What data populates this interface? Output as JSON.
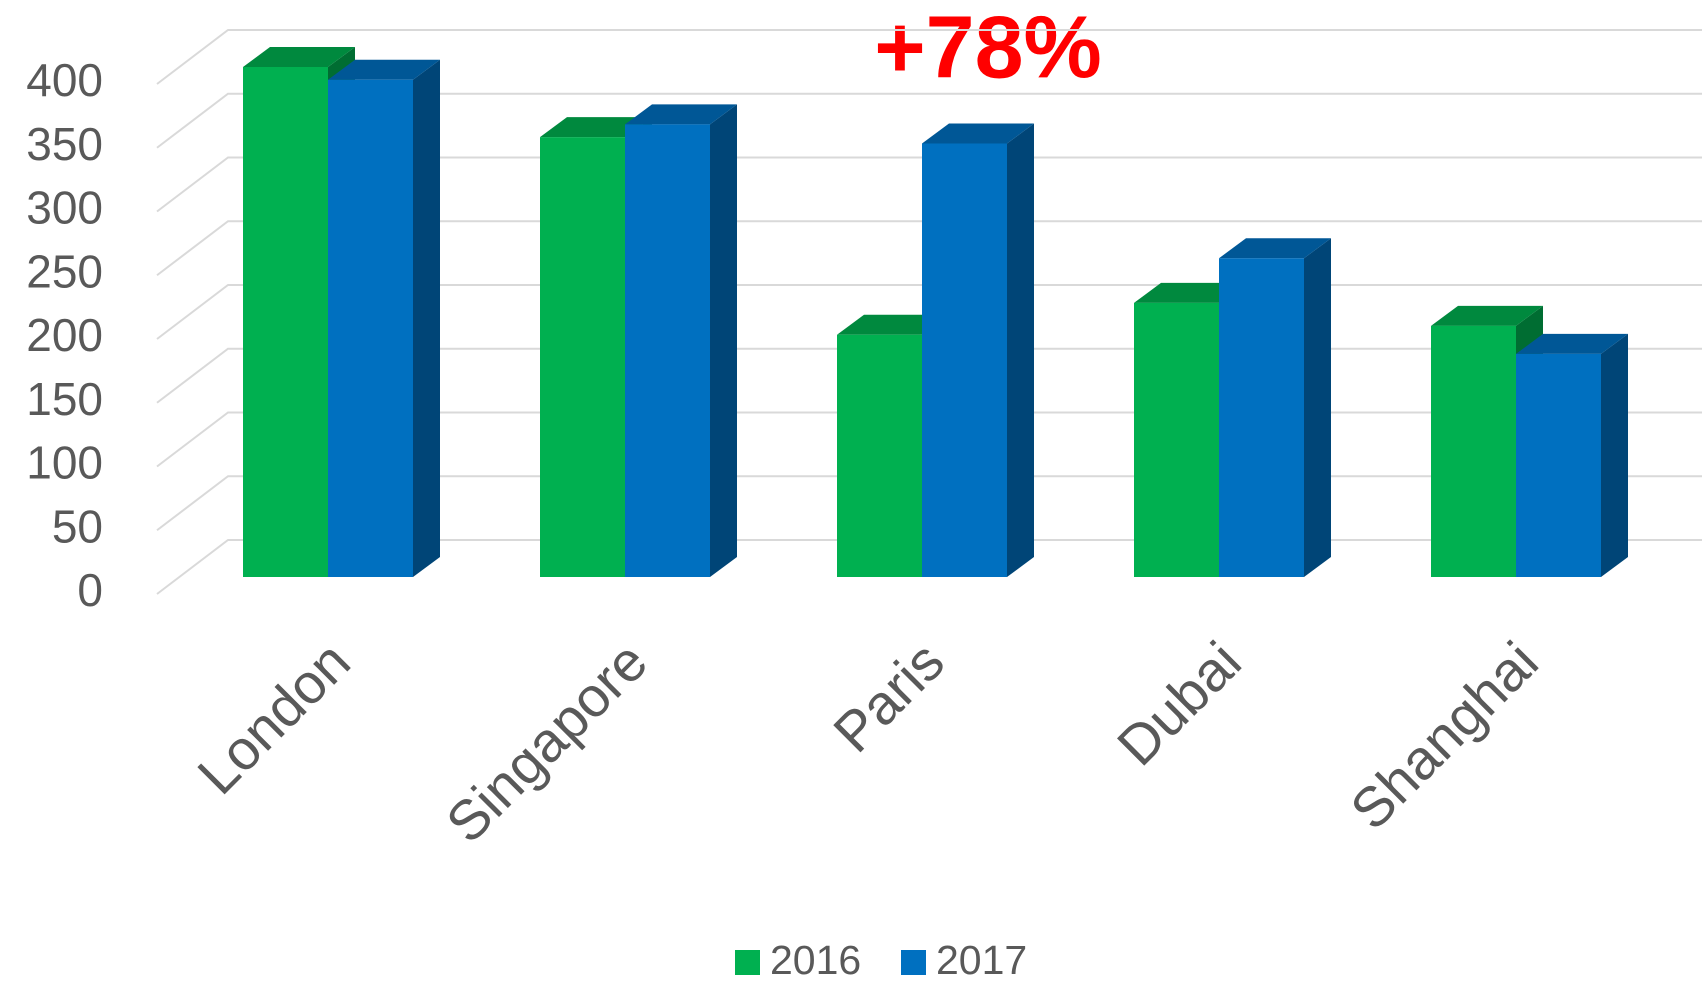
{
  "chart_data": {
    "type": "bar3d",
    "annotation": "+78%",
    "categories": [
      "London",
      "Singapore",
      "Paris",
      "Dubai",
      "Shanghai"
    ],
    "series": [
      {
        "name": "2016",
        "color": "#00b050",
        "values": [
          400,
          345,
          190,
          215,
          197
        ]
      },
      {
        "name": "2017",
        "color": "#0070c0",
        "values": [
          390,
          355,
          340,
          250,
          175
        ]
      }
    ],
    "ylim": [
      0,
      400
    ],
    "yticks": [
      0,
      50,
      100,
      150,
      200,
      250,
      300,
      350,
      400
    ],
    "grid": true,
    "legend": "bottom"
  }
}
